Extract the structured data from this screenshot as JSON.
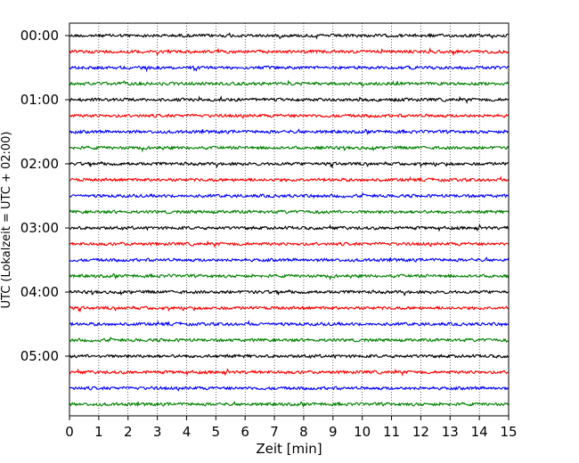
{
  "chart_data": {
    "type": "line",
    "title": "",
    "xlabel": "Zeit  [min]",
    "ylabel": "UTC (Lokalzeit = UTC + 02:00)",
    "xlim": [
      0,
      15
    ],
    "x_ticks": [
      0,
      1,
      2,
      3,
      4,
      5,
      6,
      7,
      8,
      9,
      10,
      11,
      12,
      13,
      14,
      15
    ],
    "x_tick_labels": [
      "0",
      "1",
      "2",
      "3",
      "4",
      "5",
      "6",
      "7",
      "8",
      "9",
      "10",
      "11",
      "12",
      "13",
      "14",
      "15"
    ],
    "y_tick_labels": [
      "00:00",
      "01:00",
      "02:00",
      "03:00",
      "04:00",
      "05:00"
    ],
    "grid": "vertical dotted lines at each minute",
    "legend": "none",
    "trace_interval_minutes": 15,
    "trace_colors_cycle": [
      "#000000",
      "#ff0000",
      "#0000ff",
      "#008000"
    ],
    "traces": [
      {
        "start": "00:00",
        "color": "#000000"
      },
      {
        "start": "00:15",
        "color": "#ff0000"
      },
      {
        "start": "00:30",
        "color": "#0000ff"
      },
      {
        "start": "00:45",
        "color": "#008000"
      },
      {
        "start": "01:00",
        "color": "#000000"
      },
      {
        "start": "01:15",
        "color": "#ff0000"
      },
      {
        "start": "01:30",
        "color": "#0000ff"
      },
      {
        "start": "01:45",
        "color": "#008000"
      },
      {
        "start": "02:00",
        "color": "#000000"
      },
      {
        "start": "02:15",
        "color": "#ff0000"
      },
      {
        "start": "02:30",
        "color": "#0000ff"
      },
      {
        "start": "02:45",
        "color": "#008000"
      },
      {
        "start": "03:00",
        "color": "#000000"
      },
      {
        "start": "03:15",
        "color": "#ff0000"
      },
      {
        "start": "03:30",
        "color": "#0000ff"
      },
      {
        "start": "03:45",
        "color": "#008000"
      },
      {
        "start": "04:00",
        "color": "#000000"
      },
      {
        "start": "04:15",
        "color": "#ff0000"
      },
      {
        "start": "04:30",
        "color": "#0000ff"
      },
      {
        "start": "04:45",
        "color": "#008000"
      },
      {
        "start": "05:00",
        "color": "#000000"
      },
      {
        "start": "05:15",
        "color": "#ff0000"
      },
      {
        "start": "05:30",
        "color": "#0000ff"
      },
      {
        "start": "05:45",
        "color": "#008000"
      }
    ]
  }
}
